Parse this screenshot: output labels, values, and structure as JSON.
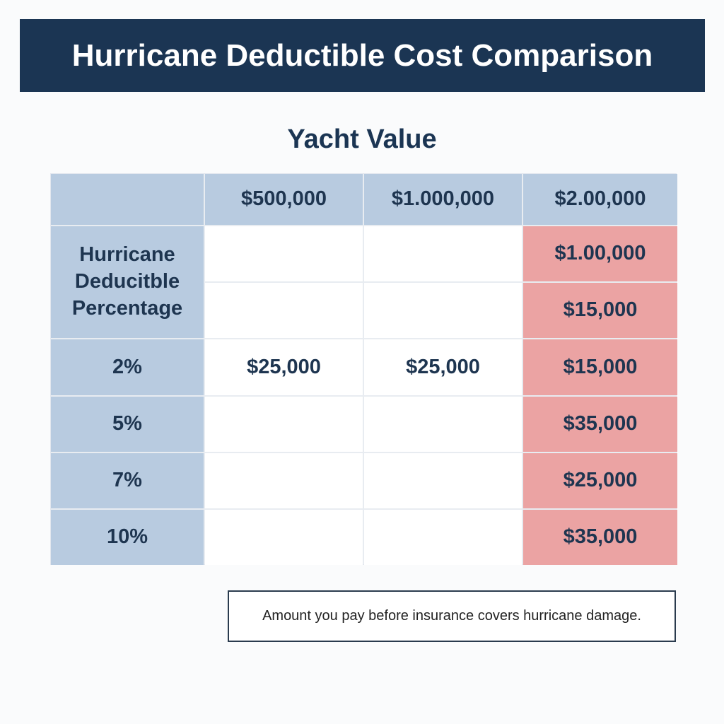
{
  "title": "Hurricane Deductible Cost Comparison",
  "column_group_label": "Yacht Value",
  "table": {
    "row_header_label": "Hurricane Deducitble Percentage",
    "columns": [
      "",
      "$500,000",
      "$1.000,000",
      "$2.00,000"
    ],
    "top_rows": [
      {
        "c1": "",
        "c2": "",
        "c3": "$1.00,000"
      },
      {
        "c1": "",
        "c2": "",
        "c3": "$15,000"
      }
    ],
    "rows": [
      {
        "label": "2%",
        "c1": "$25,000",
        "c2": "$25,000",
        "c3": "$15,000"
      },
      {
        "label": "5%",
        "c1": "",
        "c2": "",
        "c3": "$35,000"
      },
      {
        "label": "7%",
        "c1": "",
        "c2": "",
        "c3": "$25,000"
      },
      {
        "label": "10%",
        "c1": "",
        "c2": "",
        "c3": "$35,000"
      }
    ]
  },
  "note": "Amount you pay before insurance covers hurricane damage.",
  "colors": {
    "banner": "#1b3553",
    "header_fill": "#b8cbe0",
    "highlight_fill": "#eba3a3",
    "text": "#1e3550"
  },
  "chart_data": {
    "type": "table",
    "title": "Hurricane Deductible Cost Comparison",
    "subtitle": "Yacht Value",
    "columns": [
      "Hurricane Deducitble Percentage",
      "$500,000",
      "$1.000,000",
      "$2.00,000"
    ],
    "rows": [
      [
        "",
        "",
        "",
        "$1.00,000"
      ],
      [
        "",
        "",
        "",
        "$15,000"
      ],
      [
        "2%",
        "$25,000",
        "$25,000",
        "$15,000"
      ],
      [
        "5%",
        "",
        "",
        "$35,000"
      ],
      [
        "7%",
        "",
        "",
        "$25,000"
      ],
      [
        "10%",
        "",
        "",
        "$35,000"
      ]
    ],
    "highlighted_column": "$2.00,000",
    "footnote": "Amount you pay before insurance covers hurricane damage."
  }
}
